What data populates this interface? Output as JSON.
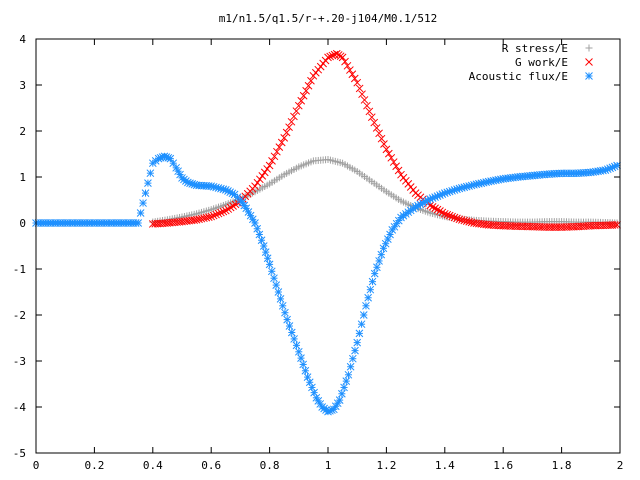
{
  "chart_data": {
    "type": "scatter",
    "title": "m1/n1.5/q1.5/r-+.20-j104/M0.1/512",
    "xlabel": "",
    "ylabel": "",
    "xlim": [
      0,
      2
    ],
    "ylim": [
      -5,
      4
    ],
    "x_ticks": [
      "0",
      "0.2",
      "0.4",
      "0.6",
      "0.8",
      "1",
      "1.2",
      "1.4",
      "1.6",
      "1.8",
      "2"
    ],
    "y_ticks": [
      "4",
      "3",
      "2",
      "1",
      "0",
      "-1",
      "-2",
      "-3",
      "-4",
      "-5"
    ],
    "grid": false,
    "legend_position": "top-right",
    "series": [
      {
        "name": "R stress/E",
        "marker": "plus",
        "color": "#a0a0a0",
        "x": [
          0.4,
          0.45,
          0.5,
          0.55,
          0.6,
          0.65,
          0.7,
          0.75,
          0.8,
          0.85,
          0.9,
          0.95,
          1.0,
          1.05,
          1.1,
          1.15,
          1.2,
          1.25,
          1.3,
          1.35,
          1.4,
          1.45,
          1.5,
          1.55,
          1.6,
          1.65,
          1.7,
          1.75,
          1.8,
          1.85,
          1.9,
          1.95,
          1.99
        ],
        "y": [
          0.02,
          0.07,
          0.13,
          0.2,
          0.29,
          0.4,
          0.52,
          0.68,
          0.85,
          1.05,
          1.22,
          1.35,
          1.38,
          1.3,
          1.12,
          0.9,
          0.68,
          0.48,
          0.33,
          0.22,
          0.14,
          0.09,
          0.06,
          0.04,
          0.03,
          0.02,
          0.02,
          0.03,
          0.03,
          0.02,
          0.02,
          0.01,
          0.0
        ]
      },
      {
        "name": "G work/E",
        "marker": "cross",
        "color": "#ff0000",
        "x": [
          0.4,
          0.45,
          0.5,
          0.55,
          0.6,
          0.65,
          0.7,
          0.75,
          0.8,
          0.85,
          0.9,
          0.95,
          1.0,
          1.03,
          1.05,
          1.1,
          1.15,
          1.2,
          1.25,
          1.3,
          1.35,
          1.4,
          1.45,
          1.5,
          1.55,
          1.6,
          1.65,
          1.7,
          1.75,
          1.8,
          1.85,
          1.9,
          1.95,
          1.99
        ],
        "y": [
          -0.02,
          0.0,
          0.03,
          0.07,
          0.14,
          0.27,
          0.47,
          0.8,
          1.25,
          1.85,
          2.55,
          3.2,
          3.6,
          3.68,
          3.6,
          3.05,
          2.3,
          1.6,
          1.05,
          0.65,
          0.38,
          0.2,
          0.08,
          0.0,
          -0.04,
          -0.06,
          -0.07,
          -0.08,
          -0.09,
          -0.09,
          -0.08,
          -0.06,
          -0.05,
          -0.04
        ]
      },
      {
        "name": "Acoustic flux/E",
        "marker": "star",
        "color": "#1e90ff",
        "x": [
          0.0,
          0.05,
          0.1,
          0.15,
          0.2,
          0.25,
          0.3,
          0.35,
          0.4,
          0.42,
          0.44,
          0.46,
          0.48,
          0.5,
          0.52,
          0.55,
          0.6,
          0.65,
          0.68,
          0.7,
          0.72,
          0.75,
          0.78,
          0.8,
          0.83,
          0.86,
          0.9,
          0.93,
          0.96,
          0.98,
          1.0,
          1.02,
          1.04,
          1.07,
          1.1,
          1.13,
          1.16,
          1.19,
          1.22,
          1.25,
          1.3,
          1.35,
          1.4,
          1.45,
          1.5,
          1.55,
          1.6,
          1.65,
          1.7,
          1.75,
          1.8,
          1.85,
          1.9,
          1.95,
          1.99
        ],
        "y": [
          0.0,
          0.0,
          0.0,
          0.0,
          0.0,
          0.0,
          0.0,
          0.0,
          1.3,
          1.4,
          1.45,
          1.4,
          1.2,
          0.98,
          0.88,
          0.82,
          0.8,
          0.72,
          0.62,
          0.5,
          0.32,
          0.0,
          -0.5,
          -0.9,
          -1.5,
          -2.1,
          -2.8,
          -3.35,
          -3.8,
          -4.0,
          -4.1,
          -4.05,
          -3.85,
          -3.3,
          -2.6,
          -1.8,
          -1.1,
          -0.55,
          -0.15,
          0.12,
          0.35,
          0.52,
          0.65,
          0.75,
          0.83,
          0.9,
          0.96,
          1.0,
          1.03,
          1.06,
          1.08,
          1.08,
          1.1,
          1.15,
          1.25
        ]
      }
    ]
  }
}
